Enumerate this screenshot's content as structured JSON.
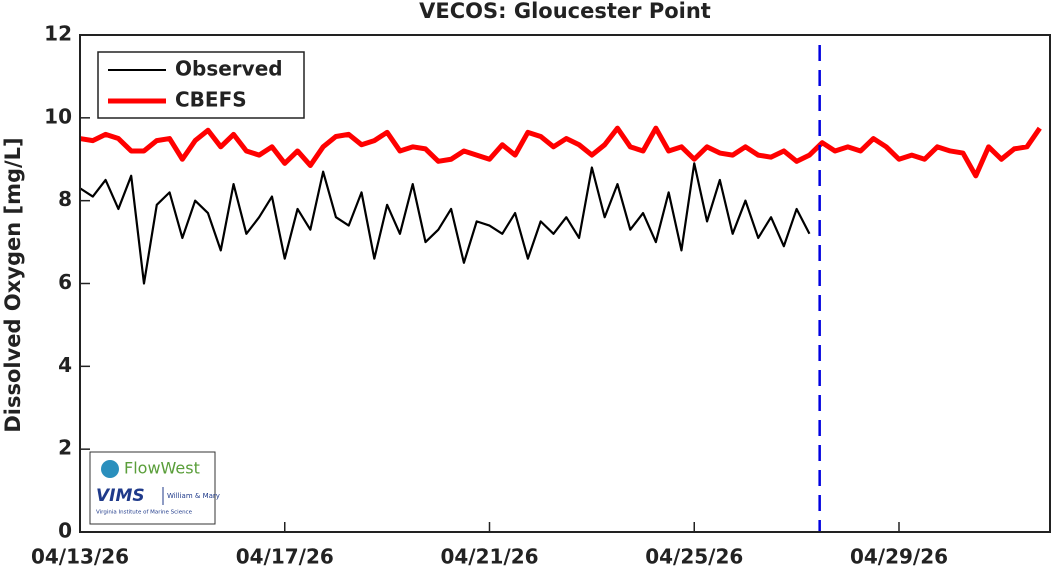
{
  "chart_data": {
    "type": "line",
    "title": "VECOS: Gloucester Point",
    "y_label": "Dissolved Oxygen [mg/L]",
    "xlim": [
      0,
      18.95
    ],
    "xticks": [
      {
        "value": 0,
        "label": "04/13/26"
      },
      {
        "value": 4,
        "label": "04/17/26"
      },
      {
        "value": 8,
        "label": "04/21/26"
      },
      {
        "value": 12,
        "label": "04/25/26"
      },
      {
        "value": 16,
        "label": "04/29/26"
      }
    ],
    "ylim": [
      0,
      12
    ],
    "yticks": [
      0,
      2,
      4,
      6,
      8,
      10,
      12
    ],
    "grid": false,
    "legend": "upper left",
    "vline": {
      "x": 14.45,
      "color": "#0000e0"
    },
    "series": [
      {
        "name": "Observed",
        "color": "#000000",
        "x": [
          0,
          0.25,
          0.5,
          0.75,
          1,
          1.25,
          1.5,
          1.75,
          2,
          2.25,
          2.5,
          2.75,
          3,
          3.25,
          3.5,
          3.75,
          4,
          4.25,
          4.5,
          4.75,
          5,
          5.25,
          5.5,
          5.75,
          6,
          6.25,
          6.5,
          6.75,
          7,
          7.25,
          7.5,
          7.75,
          8,
          8.25,
          8.5,
          8.75,
          9,
          9.25,
          9.5,
          9.75,
          10,
          10.25,
          10.5,
          10.75,
          11,
          11.25,
          11.5,
          11.75,
          12,
          12.25,
          12.5,
          12.75,
          13,
          13.25,
          13.5,
          13.75,
          14,
          14.25
        ],
        "values": [
          8.3,
          8.1,
          8.5,
          7.8,
          8.6,
          6.0,
          7.9,
          8.2,
          7.1,
          8.0,
          7.7,
          6.8,
          8.4,
          7.2,
          7.6,
          8.1,
          6.6,
          7.8,
          7.3,
          8.7,
          7.6,
          7.4,
          8.2,
          6.6,
          7.9,
          7.2,
          8.4,
          7.0,
          7.3,
          7.8,
          6.5,
          7.5,
          7.4,
          7.2,
          7.7,
          6.6,
          7.5,
          7.2,
          7.6,
          7.1,
          8.8,
          7.6,
          8.4,
          7.3,
          7.7,
          7.0,
          8.2,
          6.8,
          8.9,
          7.5,
          8.5,
          7.2,
          8.0,
          7.1,
          7.6,
          6.9,
          7.8,
          7.2
        ]
      },
      {
        "name": "CBEFS",
        "color": "#ff0000",
        "x": [
          0,
          0.25,
          0.5,
          0.75,
          1,
          1.25,
          1.5,
          1.75,
          2,
          2.25,
          2.5,
          2.75,
          3,
          3.25,
          3.5,
          3.75,
          4,
          4.25,
          4.5,
          4.75,
          5,
          5.25,
          5.5,
          5.75,
          6,
          6.25,
          6.5,
          6.75,
          7,
          7.25,
          7.5,
          7.75,
          8,
          8.25,
          8.5,
          8.75,
          9,
          9.25,
          9.5,
          9.75,
          10,
          10.25,
          10.5,
          10.75,
          11,
          11.25,
          11.5,
          11.75,
          12,
          12.25,
          12.5,
          12.75,
          13,
          13.25,
          13.5,
          13.75,
          14,
          14.25,
          14.5,
          14.75,
          15,
          15.25,
          15.5,
          15.75,
          16,
          16.25,
          16.5,
          16.75,
          17,
          17.25,
          17.5,
          17.75,
          18,
          18.25,
          18.5,
          18.75
        ],
        "values": [
          9.5,
          9.45,
          9.6,
          9.5,
          9.2,
          9.2,
          9.45,
          9.5,
          9.0,
          9.45,
          9.7,
          9.3,
          9.6,
          9.2,
          9.1,
          9.3,
          8.9,
          9.2,
          8.85,
          9.3,
          9.55,
          9.6,
          9.35,
          9.45,
          9.65,
          9.2,
          9.3,
          9.25,
          8.95,
          9.0,
          9.2,
          9.1,
          9.0,
          9.35,
          9.1,
          9.65,
          9.55,
          9.3,
          9.5,
          9.35,
          9.1,
          9.35,
          9.75,
          9.3,
          9.2,
          9.75,
          9.2,
          9.3,
          9.0,
          9.3,
          9.15,
          9.1,
          9.3,
          9.1,
          9.05,
          9.2,
          8.95,
          9.1,
          9.4,
          9.2,
          9.3,
          9.2,
          9.5,
          9.3,
          9.0,
          9.1,
          9.0,
          9.3,
          9.2,
          9.15,
          8.6,
          9.3,
          9.0,
          9.25,
          9.3,
          9.75
        ]
      }
    ]
  },
  "logos": [
    "FlowWest",
    "VIMS",
    "William & Mary",
    "Virginia Institute of Marine Science"
  ]
}
